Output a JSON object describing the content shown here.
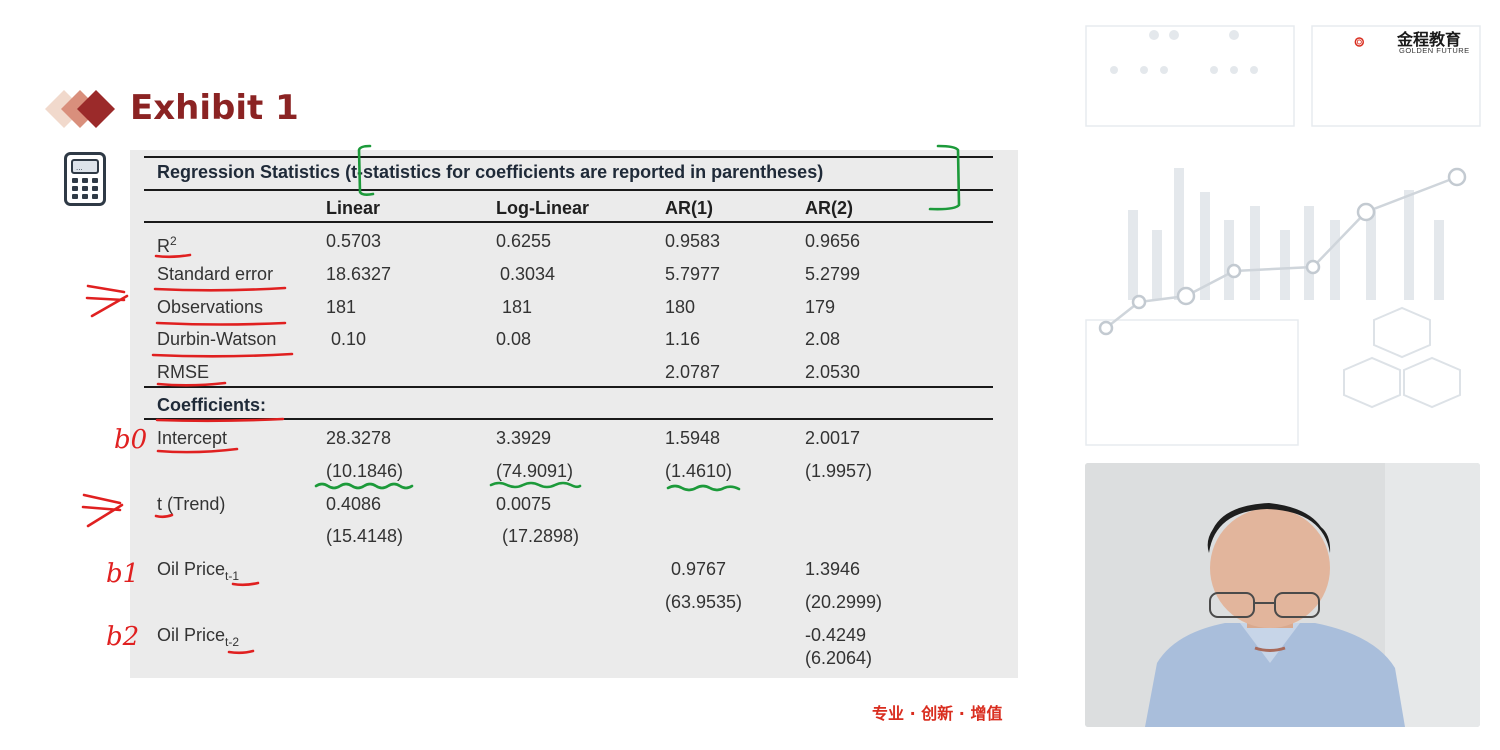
{
  "slide": {
    "title": "Exhibit 1",
    "slogan": "专业 · 创新 · 增值"
  },
  "logo": {
    "name_cn": "金程教育",
    "name_en": "GOLDEN FUTURE"
  },
  "table": {
    "caption": "Regression Statistics (t-statistics for coefficients are reported in parentheses)",
    "columns": [
      "Linear",
      "Log-Linear",
      "AR(1)",
      "AR(2)"
    ],
    "statistics": [
      {
        "label": "R",
        "label_sup": "2",
        "values": [
          "0.5703",
          "0.6255",
          "0.9583",
          "0.9656"
        ]
      },
      {
        "label": "Standard error",
        "values": [
          "18.6327",
          "0.3034",
          "5.7977",
          "5.2799"
        ]
      },
      {
        "label": "Observations",
        "values": [
          "181",
          "181",
          "180",
          "179"
        ]
      },
      {
        "label": "Durbin-Watson",
        "values": [
          "0.10",
          "0.08",
          "1.16",
          "2.08"
        ]
      },
      {
        "label": "RMSE",
        "values": [
          "",
          "",
          "2.0787",
          "2.0530"
        ]
      }
    ],
    "coefficients_heading": "Coefficients:",
    "coefficients": [
      {
        "label": "Intercept",
        "values": [
          "28.3278",
          "3.3929",
          "1.5948",
          "2.0017"
        ],
        "tstats": [
          "(10.1846)",
          "(74.9091)",
          "(1.4610)",
          "(1.9957)"
        ]
      },
      {
        "label": "t (Trend)",
        "values": [
          "0.4086",
          "0.0075",
          "",
          ""
        ],
        "tstats": [
          "(15.4148)",
          "(17.2898)",
          "",
          ""
        ]
      },
      {
        "label": "Oil Price",
        "label_sub": "t-1",
        "values": [
          "",
          "",
          "0.9767",
          "1.3946"
        ],
        "tstats": [
          "",
          "",
          "(63.9535)",
          "(20.2999)"
        ]
      },
      {
        "label": "Oil Price",
        "label_sub": "t-2",
        "values": [
          "",
          "",
          "",
          "-0.4249"
        ],
        "tstats": [
          "",
          "",
          "",
          "(6.2064)"
        ]
      }
    ]
  },
  "handwriting": {
    "b0": "b0",
    "b1": "b1",
    "b2": "b2"
  },
  "colors": {
    "title": "#8b2323",
    "annotation_red": "#e02020",
    "annotation_green": "#1c9a3a",
    "slogan": "#d92d1f"
  }
}
